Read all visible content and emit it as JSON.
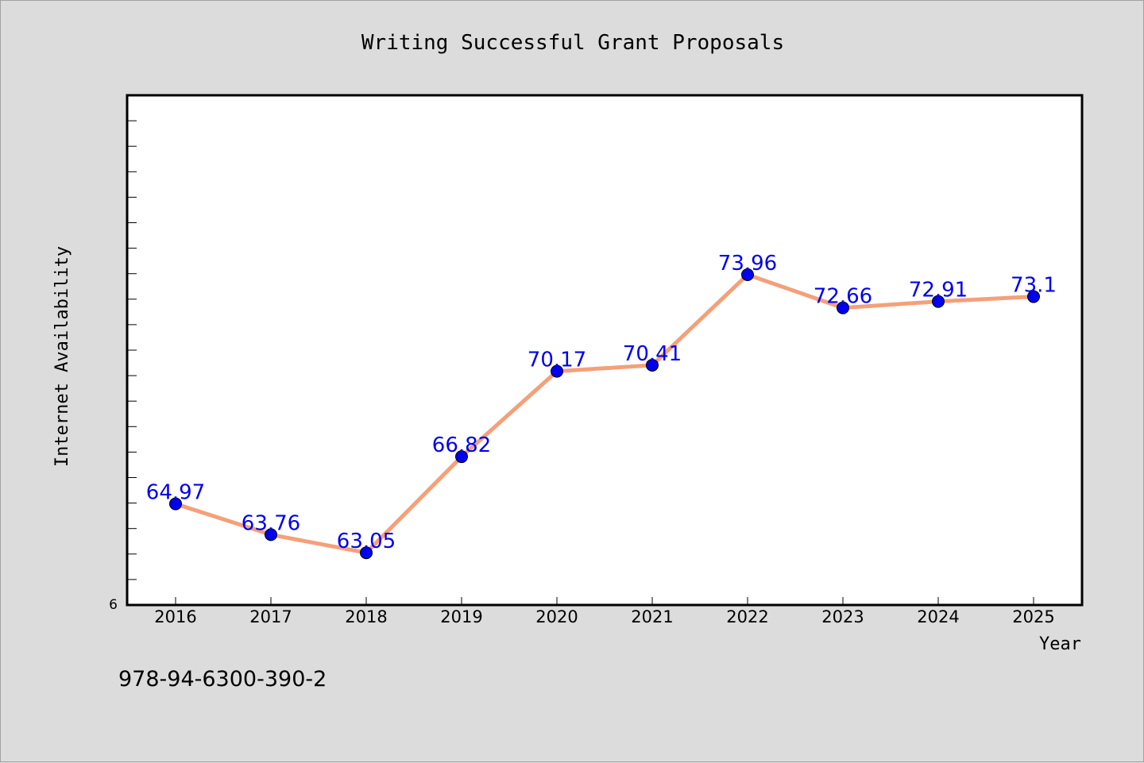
{
  "chart_data": {
    "type": "line",
    "title": "Writing Successful Grant Proposals",
    "xlabel": "Year",
    "ylabel": "Internet Availability",
    "y_tick_label": "6",
    "categories": [
      "2016",
      "2017",
      "2018",
      "2019",
      "2020",
      "2021",
      "2022",
      "2023",
      "2024",
      "2025"
    ],
    "series": [
      {
        "values": [
          64.97,
          63.76,
          63.05,
          66.82,
          70.17,
          70.41,
          73.96,
          72.66,
          72.91,
          73.1
        ],
        "data_labels": [
          "64.97",
          "63.76",
          "63.05",
          "66.82",
          "70.17",
          "70.41",
          "73.96",
          "72.66",
          "72.91",
          "73.1"
        ]
      }
    ],
    "ylim": [
      61,
      81
    ],
    "grid": false,
    "line_color": "#f4a07a",
    "marker_color": "#0000ee",
    "label_color": "#0000ee"
  },
  "footer_text": "978-94-6300-390-2"
}
